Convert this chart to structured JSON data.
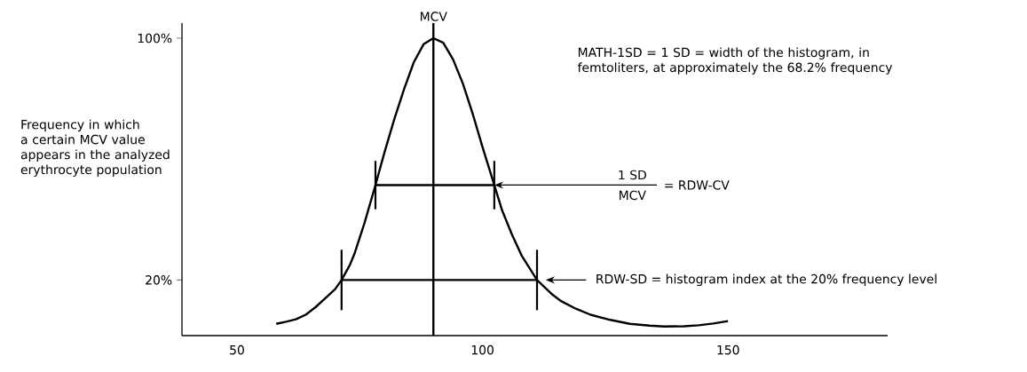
{
  "chart_data": {
    "type": "line",
    "ylabel": "Frequency in which a certain MCV value appears in the analyzed erythrocyte population",
    "xlim": [
      38.8,
      182.5
    ],
    "ylim": [
      1.6,
      105
    ],
    "xticks": [
      50,
      100,
      150
    ],
    "yticks": [
      {
        "value": 20,
        "label": "20%"
      },
      {
        "value": 100,
        "label": "100%"
      }
    ],
    "series": [
      {
        "color": "#000000",
        "x": [
          58,
          60,
          62,
          64,
          66,
          68,
          70,
          71.3,
          73,
          74,
          76,
          78.2,
          80,
          82,
          84,
          86,
          88,
          90,
          92,
          94,
          96,
          98,
          100,
          102.4,
          104,
          106,
          108,
          111.1,
          114,
          116,
          119,
          122,
          126,
          130,
          134,
          137,
          141,
          144,
          147,
          150
        ],
        "values": [
          5.5,
          6.2,
          7,
          8.5,
          11,
          14,
          17,
          20,
          25,
          29,
          39,
          51.4,
          62,
          73,
          83,
          92,
          98,
          100,
          98.5,
          93,
          85,
          75,
          64,
          51.4,
          43,
          35,
          28,
          20,
          15.5,
          13,
          10.5,
          8.5,
          6.8,
          5.5,
          4.9,
          4.6,
          4.7,
          5,
          5.6,
          6.4
        ]
      },
      {
        "color": "#000000",
        "x": [
          78.2,
          102.4
        ],
        "values": [
          51.4,
          51.4
        ],
        "errors": [
          8,
          8
        ]
      },
      {
        "color": "#000000",
        "x": [
          71.3,
          111.1
        ],
        "values": [
          20,
          20
        ],
        "errors": [
          10,
          10
        ]
      }
    ],
    "ref_lines": [
      {
        "axis": "x",
        "value": 90,
        "label": "MCV",
        "color": "#000000"
      }
    ],
    "annotations": [
      "MATH-1SD = 1 SD = width of the histogram, in femtoliters, at approximately the 68.2% frequency",
      {
        "text": "1 SD",
        "x": 102.4,
        "y": 51.4
      },
      "MCV",
      "= RDW-CV",
      "RDW-SD = histogram index at the 20% frequency level"
    ]
  }
}
